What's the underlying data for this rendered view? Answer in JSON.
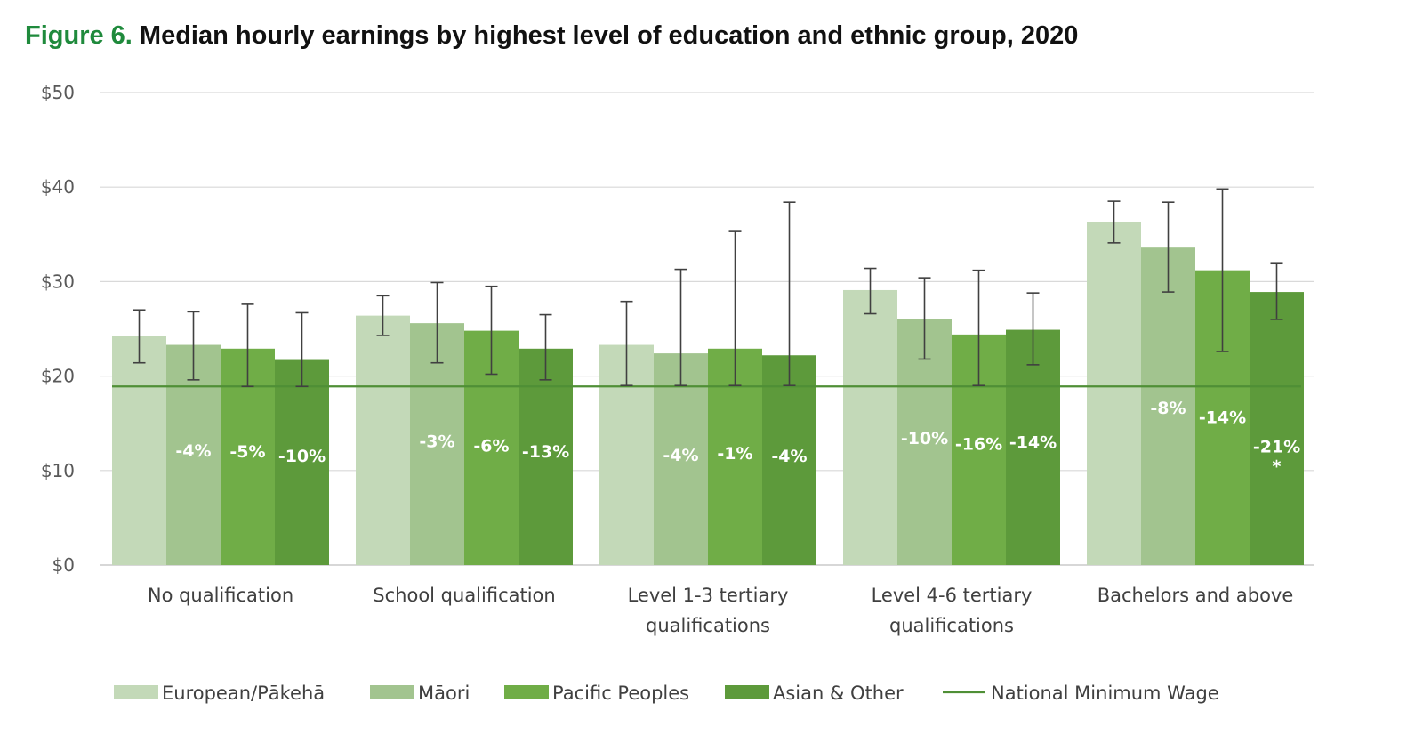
{
  "title": {
    "figure_label": "Figure 6.",
    "text": "Median hourly earnings by highest level of education and ethnic group, 2020"
  },
  "colors": {
    "title_accent": "#1f8a3c",
    "european": "#c3d9b8",
    "maori": "#a2c48f",
    "pacific": "#70ad47",
    "asian": "#5d9a3b",
    "minimum_wage_line": "#4f8f36",
    "gridline": "#d9d9d9",
    "error_bar": "#404040"
  },
  "chart_data": {
    "type": "bar",
    "title": "Median hourly earnings by highest level of education and ethnic group, 2020",
    "xlabel": "",
    "ylabel": "",
    "ylim": [
      0,
      50
    ],
    "yticks": [
      {
        "value": 0,
        "label": "$0"
      },
      {
        "value": 10,
        "label": "$10"
      },
      {
        "value": 20,
        "label": "$20"
      },
      {
        "value": 30,
        "label": "$30"
      },
      {
        "value": 40,
        "label": "$40"
      },
      {
        "value": 50,
        "label": "$50"
      }
    ],
    "grid": true,
    "legend_position": "bottom",
    "categories": [
      [
        "No qualification"
      ],
      [
        "School qualification"
      ],
      [
        "Level 1-3 tertiary",
        "qualifications"
      ],
      [
        "Level 4-6 tertiary",
        "qualifications"
      ],
      [
        "Bachelors and above"
      ]
    ],
    "series": [
      {
        "name": "European/Pākehā",
        "color_key": "european",
        "values": [
          24.2,
          26.4,
          23.3,
          29.1,
          36.3
        ],
        "error_low": [
          21.4,
          24.3,
          19.0,
          26.6,
          34.1
        ],
        "error_high": [
          27.0,
          28.5,
          27.9,
          31.4,
          38.5
        ],
        "gap_labels": [
          "",
          "",
          "",
          "",
          ""
        ]
      },
      {
        "name": "Māori",
        "color_key": "maori",
        "values": [
          23.3,
          25.6,
          22.4,
          26.0,
          33.6
        ],
        "error_low": [
          19.6,
          21.4,
          19.0,
          21.8,
          28.9
        ],
        "error_high": [
          26.8,
          29.9,
          31.3,
          30.4,
          38.4
        ],
        "gap_labels": [
          "-4%",
          "-3%",
          "-4%",
          "-10%",
          "-8%"
        ],
        "gap_label_values": [
          11.5,
          12.5,
          11.0,
          12.8,
          16.0
        ]
      },
      {
        "name": "Pacific Peoples",
        "color_key": "pacific",
        "values": [
          22.9,
          24.8,
          22.9,
          24.4,
          31.2
        ],
        "error_low": [
          18.9,
          20.2,
          19.0,
          19.0,
          22.6
        ],
        "error_high": [
          27.6,
          29.5,
          35.3,
          31.2,
          39.8
        ],
        "gap_labels": [
          "-5%",
          "-6%",
          "-1%",
          "-16%",
          "-14%"
        ],
        "gap_label_values": [
          11.4,
          12.0,
          11.2,
          12.2,
          15.0
        ]
      },
      {
        "name": "Asian & Other",
        "color_key": "asian",
        "values": [
          21.7,
          22.9,
          22.2,
          24.9,
          28.9
        ],
        "error_low": [
          18.9,
          19.6,
          19.0,
          21.2,
          26.0
        ],
        "error_high": [
          26.7,
          26.5,
          38.4,
          28.8,
          31.9
        ],
        "gap_labels": [
          "-10%",
          "-13%",
          "-4%",
          "-14%",
          "-21%"
        ],
        "gap_label_values": [
          10.9,
          11.4,
          10.9,
          12.4,
          11.9
        ],
        "gap_label_notes": [
          "",
          "",
          "",
          "",
          "*"
        ]
      }
    ],
    "reference_line": {
      "name": "National Minimum Wage",
      "value": 18.9
    }
  },
  "legend": {
    "items": [
      {
        "label": "European/Pākehā",
        "color_key": "european",
        "kind": "box"
      },
      {
        "label": "Māori",
        "color_key": "maori",
        "kind": "box"
      },
      {
        "label": "Pacific Peoples",
        "color_key": "pacific",
        "kind": "box"
      },
      {
        "label": "Asian & Other",
        "color_key": "asian",
        "kind": "box"
      },
      {
        "label": "National Minimum Wage",
        "color_key": "minimum_wage_line",
        "kind": "line"
      }
    ]
  }
}
